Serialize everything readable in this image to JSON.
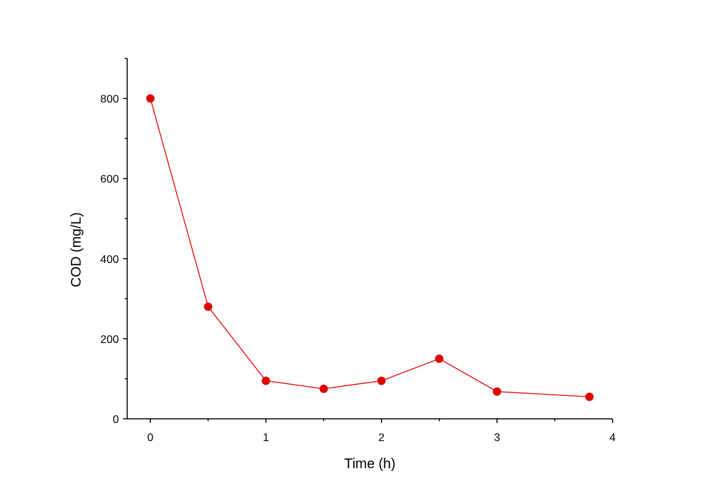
{
  "chart_data": {
    "type": "line",
    "title": "",
    "xlabel": "Time (h)",
    "ylabel": "COD (mg/L)",
    "xlim": [
      -0.2,
      4
    ],
    "ylim": [
      0,
      900
    ],
    "x_ticks": [
      0,
      1,
      2,
      3,
      4
    ],
    "x_tick_labels": [
      "0",
      "1",
      "2",
      "3",
      "4"
    ],
    "y_ticks": [
      0,
      200,
      400,
      600,
      800
    ],
    "y_tick_labels": [
      "0",
      "200",
      "400",
      "600",
      "800"
    ],
    "grid": false,
    "legend": "none",
    "series": [
      {
        "color": "#e00000",
        "x": [
          0,
          0.5,
          1,
          1.5,
          2,
          2.5,
          3,
          3.8
        ],
        "y": [
          800,
          280,
          95,
          75,
          95,
          150,
          68,
          55
        ]
      }
    ]
  }
}
